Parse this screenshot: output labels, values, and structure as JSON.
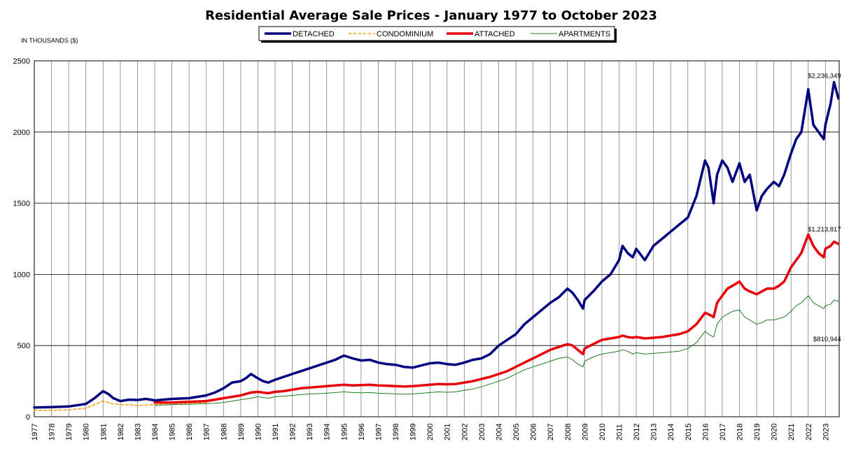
{
  "chart_data": {
    "type": "line",
    "title": "Residential Average Sale Prices  -  January 1977 to October 2023",
    "ylabel": "IN THOUSANDS ($)",
    "xlabel": "",
    "ylim": [
      0,
      2500
    ],
    "y_ticks": [
      0,
      500,
      1000,
      1500,
      2000,
      2500
    ],
    "grid": true,
    "legend_position": "top-center",
    "x": [
      1977.0,
      1978.0,
      1979.0,
      1980.0,
      1980.5,
      1981.0,
      1981.3,
      1981.6,
      1982.0,
      1982.5,
      1983.0,
      1983.5,
      1984.0,
      1984.5,
      1985.0,
      1986.0,
      1987.0,
      1987.5,
      1988.0,
      1988.5,
      1989.0,
      1989.3,
      1989.6,
      1990.0,
      1990.3,
      1990.6,
      1991.0,
      1991.5,
      1992.0,
      1992.5,
      1993.0,
      1993.5,
      1994.0,
      1994.5,
      1995.0,
      1995.5,
      1996.0,
      1996.5,
      1997.0,
      1997.5,
      1998.0,
      1998.5,
      1999.0,
      1999.5,
      2000.0,
      2000.5,
      2001.0,
      2001.5,
      2002.0,
      2002.5,
      2003.0,
      2003.5,
      2004.0,
      2004.5,
      2005.0,
      2005.5,
      2006.0,
      2006.5,
      2007.0,
      2007.5,
      2008.0,
      2008.3,
      2008.6,
      2008.9,
      2009.0,
      2009.5,
      2010.0,
      2010.5,
      2011.0,
      2011.2,
      2011.5,
      2011.8,
      2012.0,
      2012.5,
      2013.0,
      2013.5,
      2014.0,
      2014.5,
      2015.0,
      2015.5,
      2016.0,
      2016.2,
      2016.5,
      2016.7,
      2017.0,
      2017.3,
      2017.6,
      2018.0,
      2018.3,
      2018.6,
      2019.0,
      2019.3,
      2019.6,
      2020.0,
      2020.3,
      2020.6,
      2021.0,
      2021.3,
      2021.6,
      2022.0,
      2022.3,
      2022.6,
      2022.9,
      2023.0,
      2023.3,
      2023.5,
      2023.75
    ],
    "series": [
      {
        "name": "DETACHED",
        "color": "#000080",
        "line_style": "solid-thick",
        "values": [
          65,
          68,
          72,
          90,
          130,
          180,
          160,
          130,
          110,
          120,
          118,
          125,
          115,
          120,
          125,
          130,
          150,
          170,
          200,
          240,
          250,
          270,
          300,
          270,
          250,
          240,
          260,
          280,
          300,
          320,
          340,
          360,
          380,
          400,
          430,
          410,
          395,
          400,
          380,
          370,
          365,
          350,
          345,
          360,
          375,
          380,
          370,
          365,
          380,
          400,
          410,
          440,
          500,
          540,
          580,
          650,
          700,
          750,
          800,
          840,
          900,
          870,
          820,
          760,
          820,
          880,
          950,
          1000,
          1100,
          1200,
          1150,
          1120,
          1180,
          1100,
          1200,
          1250,
          1300,
          1350,
          1400,
          1550,
          1800,
          1750,
          1500,
          1700,
          1800,
          1750,
          1650,
          1780,
          1650,
          1700,
          1450,
          1550,
          1600,
          1650,
          1620,
          1700,
          1850,
          1950,
          2000,
          2300,
          2050,
          2000,
          1950,
          2050,
          2200,
          2350,
          2236
        ]
      },
      {
        "name": "CONDOMINIUM",
        "color": "#F39C12",
        "line_style": "dashed",
        "values": [
          45,
          45,
          48,
          60,
          85,
          110,
          100,
          90,
          85,
          85,
          80,
          82,
          85,
          90,
          92,
          95,
          100,
          null,
          null,
          null,
          null,
          null,
          null,
          null,
          null,
          null,
          null,
          null,
          null,
          null,
          null,
          null,
          null,
          null,
          null,
          null,
          null,
          null,
          null,
          null,
          null,
          null,
          null,
          null,
          null,
          null,
          null,
          null,
          null,
          null,
          null,
          null,
          null,
          null,
          null,
          null,
          null,
          null,
          null,
          null,
          null,
          null,
          null,
          null,
          null,
          null,
          null,
          null,
          null,
          null,
          null,
          null,
          null,
          null,
          null,
          null,
          null,
          null,
          null,
          null,
          null,
          null,
          null,
          null,
          null,
          null,
          null,
          null,
          null,
          null,
          null,
          null,
          null,
          null,
          null,
          null,
          null,
          null,
          null,
          null,
          null,
          null,
          null,
          null,
          null,
          null,
          null
        ]
      },
      {
        "name": "ATTACHED",
        "color": "#E8000B",
        "line_style": "solid-thick",
        "values": [
          null,
          null,
          null,
          null,
          null,
          null,
          null,
          null,
          null,
          null,
          null,
          null,
          100,
          100,
          100,
          105,
          110,
          120,
          130,
          140,
          150,
          160,
          170,
          175,
          170,
          165,
          175,
          180,
          190,
          200,
          205,
          210,
          215,
          220,
          225,
          220,
          222,
          225,
          220,
          218,
          215,
          212,
          215,
          220,
          225,
          230,
          228,
          230,
          240,
          250,
          265,
          280,
          300,
          320,
          350,
          380,
          410,
          440,
          470,
          490,
          510,
          500,
          470,
          440,
          480,
          510,
          540,
          550,
          560,
          570,
          560,
          555,
          560,
          550,
          555,
          560,
          570,
          580,
          600,
          650,
          730,
          720,
          700,
          800,
          850,
          900,
          920,
          950,
          900,
          880,
          860,
          880,
          900,
          900,
          920,
          950,
          1050,
          1100,
          1150,
          1280,
          1200,
          1150,
          1120,
          1180,
          1200,
          1230,
          1214
        ]
      },
      {
        "name": "APARTMENTS",
        "color": "#1E7B1E",
        "line_style": "solid-thin",
        "values": [
          null,
          null,
          null,
          null,
          null,
          null,
          null,
          null,
          null,
          null,
          null,
          null,
          80,
          82,
          85,
          88,
          92,
          95,
          100,
          110,
          120,
          125,
          130,
          140,
          135,
          130,
          140,
          145,
          150,
          155,
          160,
          162,
          165,
          170,
          175,
          170,
          168,
          170,
          165,
          163,
          160,
          158,
          160,
          165,
          170,
          175,
          172,
          175,
          185,
          195,
          210,
          230,
          250,
          270,
          300,
          330,
          350,
          370,
          390,
          410,
          420,
          400,
          370,
          350,
          390,
          420,
          440,
          450,
          460,
          470,
          460,
          440,
          450,
          440,
          445,
          450,
          455,
          460,
          480,
          520,
          600,
          580,
          560,
          650,
          700,
          720,
          740,
          750,
          700,
          680,
          650,
          660,
          680,
          680,
          690,
          700,
          740,
          780,
          800,
          850,
          800,
          780,
          760,
          780,
          790,
          820,
          811
        ]
      }
    ],
    "categories": [
      "1977",
      "1978",
      "1979",
      "1980",
      "1981",
      "1982",
      "1983",
      "1984",
      "1985",
      "1986",
      "1987",
      "1988",
      "1989",
      "1990",
      "1991",
      "1992",
      "1993",
      "1994",
      "1995",
      "1996",
      "1997",
      "1998",
      "1999",
      "2000",
      "2001",
      "2002",
      "2003",
      "2004",
      "2005",
      "2006",
      "2007",
      "2008",
      "2009",
      "2010",
      "2011",
      "2012",
      "2013",
      "2014",
      "2015",
      "2016",
      "2017",
      "2018",
      "2019",
      "2020",
      "2021",
      "2022",
      "2023"
    ],
    "annotations": [
      {
        "text": "$2,236,349",
        "series": "DETACHED",
        "x": 2023.5,
        "y": 2400
      },
      {
        "text": "$1,213,817",
        "series": "ATTACHED",
        "x": 2023.5,
        "y": 1320
      },
      {
        "text": "$810,944",
        "series": "APARTMENTS",
        "x": 2023.5,
        "y": 550
      }
    ]
  }
}
